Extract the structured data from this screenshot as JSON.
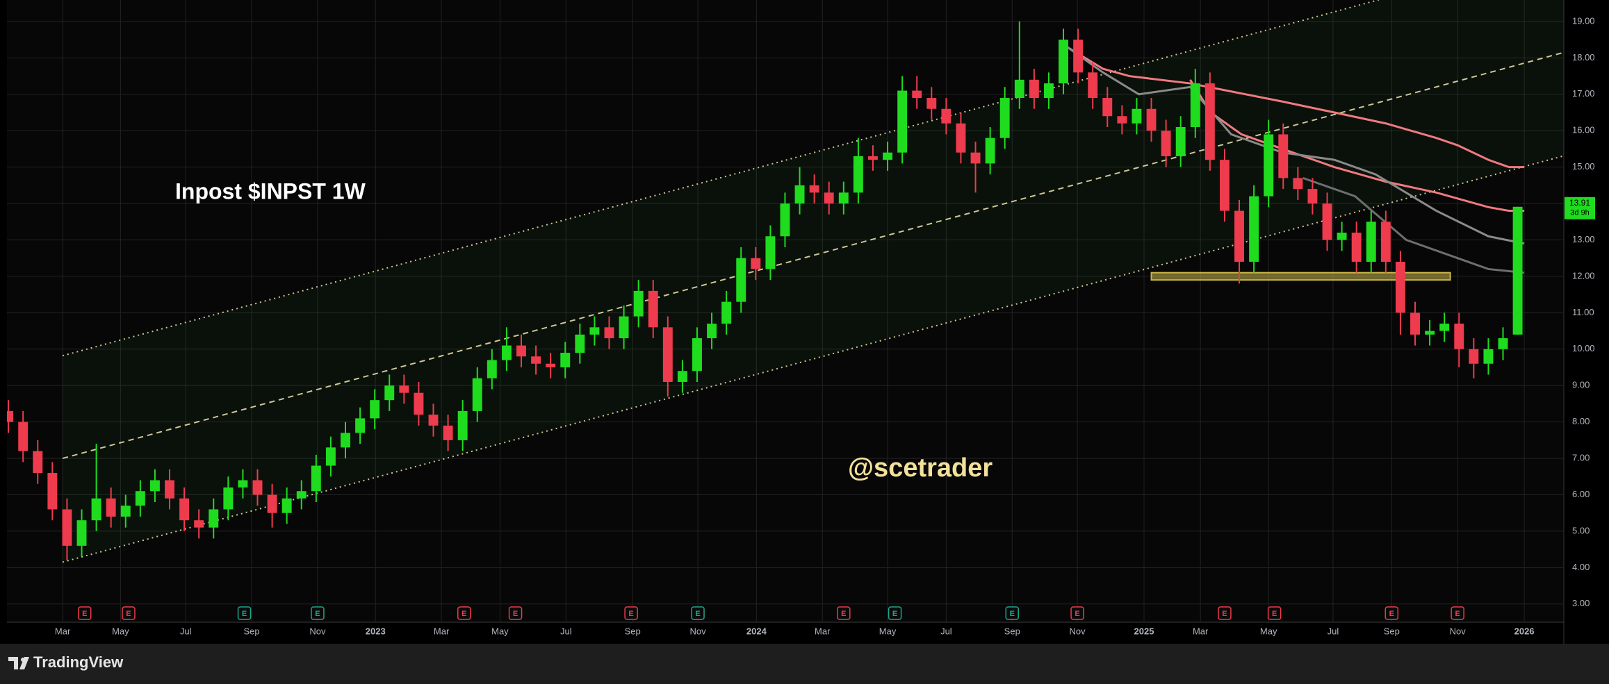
{
  "chart_data": {
    "type": "candlestick",
    "title": "Inpost $INPST 1W",
    "annotation": "@scetrader",
    "up_color": "#1fdc1f",
    "down_color": "#ee3b4d",
    "grid": true,
    "x": [
      2,
      4,
      6,
      8,
      10,
      12,
      14,
      16,
      18,
      20,
      22,
      24,
      26,
      28,
      30,
      32,
      34,
      36,
      38,
      40,
      42,
      44,
      46,
      48,
      50,
      52,
      54,
      56,
      58,
      60,
      62,
      64,
      66,
      68,
      70,
      72,
      74,
      76,
      78,
      80,
      82,
      84,
      86,
      88,
      90,
      92,
      94,
      96,
      98,
      100,
      102,
      104,
      106,
      108,
      110,
      112,
      114,
      116,
      118,
      120,
      122,
      124,
      126,
      128,
      130,
      132,
      134,
      136,
      138,
      140,
      142,
      144,
      146,
      148,
      150,
      152,
      154,
      156,
      158,
      160,
      162,
      164,
      166,
      168,
      170,
      172,
      174,
      176,
      178,
      180,
      182,
      184,
      186,
      188,
      190,
      192,
      194,
      196,
      198,
      200,
      202,
      204,
      206,
      208
    ],
    "open": [
      8.3,
      8.0,
      7.2,
      6.6,
      5.6,
      4.6,
      5.3,
      5.9,
      5.4,
      5.7,
      6.1,
      6.4,
      5.9,
      5.3,
      5.1,
      5.6,
      6.2,
      6.4,
      6.0,
      5.5,
      5.9,
      6.1,
      6.8,
      7.3,
      7.7,
      8.1,
      8.6,
      9.0,
      8.8,
      8.2,
      7.9,
      7.5,
      8.3,
      9.2,
      9.7,
      10.1,
      9.8,
      9.6,
      9.5,
      9.9,
      10.4,
      10.6,
      10.3,
      10.9,
      11.6,
      10.6,
      9.1,
      9.4,
      10.3,
      10.7,
      11.3,
      12.5,
      12.2,
      13.1,
      14.0,
      14.5,
      14.3,
      14.0,
      14.3,
      15.3,
      15.2,
      15.4,
      17.1,
      16.9,
      16.6,
      16.2,
      15.4,
      15.1,
      15.8,
      16.9,
      17.4,
      16.9,
      17.3,
      18.5,
      17.6,
      16.9,
      16.4,
      16.2,
      16.6,
      16.0,
      15.3,
      16.1,
      17.3,
      15.2,
      13.8,
      12.4,
      14.2,
      15.9,
      14.7,
      14.4,
      14.0,
      13.0,
      13.2,
      12.4,
      13.5,
      12.4,
      11.0,
      10.4,
      10.5,
      10.7,
      10.0,
      9.6,
      10.0,
      10.4
    ],
    "high": [
      8.6,
      8.3,
      7.5,
      6.9,
      5.9,
      5.6,
      7.4,
      6.2,
      6.0,
      6.4,
      6.7,
      6.7,
      6.2,
      5.6,
      5.9,
      6.5,
      6.7,
      6.7,
      6.3,
      6.2,
      6.4,
      7.1,
      7.6,
      8.0,
      8.4,
      8.9,
      9.3,
      9.3,
      9.1,
      8.5,
      8.2,
      8.6,
      9.5,
      10.0,
      10.6,
      10.4,
      10.1,
      9.9,
      10.2,
      10.7,
      10.9,
      10.9,
      11.2,
      11.9,
      11.9,
      10.9,
      9.7,
      10.6,
      11.0,
      11.6,
      12.8,
      12.8,
      13.4,
      14.3,
      15.0,
      14.8,
      14.6,
      14.6,
      15.8,
      15.6,
      15.7,
      17.5,
      17.5,
      17.2,
      16.9,
      16.5,
      15.7,
      16.1,
      17.2,
      19.0,
      17.7,
      17.6,
      18.8,
      18.8,
      17.9,
      17.2,
      16.7,
      16.9,
      16.9,
      16.3,
      16.4,
      17.7,
      17.6,
      15.5,
      14.1,
      14.5,
      16.3,
      16.2,
      15.0,
      14.7,
      14.3,
      13.5,
      13.5,
      13.8,
      13.8,
      12.7,
      11.3,
      10.8,
      11.0,
      11.0,
      10.3,
      10.3,
      10.6,
      13.91
    ],
    "low": [
      7.7,
      6.9,
      6.3,
      5.3,
      4.2,
      4.3,
      5.0,
      5.1,
      5.1,
      5.4,
      5.8,
      5.6,
      5.0,
      4.8,
      4.8,
      5.3,
      5.9,
      5.7,
      5.1,
      5.2,
      5.6,
      5.8,
      6.5,
      7.0,
      7.4,
      7.8,
      8.3,
      8.5,
      7.9,
      7.6,
      7.2,
      7.2,
      8.0,
      8.9,
      9.4,
      9.5,
      9.3,
      9.2,
      9.2,
      9.6,
      10.1,
      10.0,
      10.0,
      10.6,
      10.3,
      8.7,
      8.8,
      9.1,
      10.0,
      10.4,
      11.0,
      11.9,
      11.9,
      12.8,
      13.7,
      14.0,
      13.7,
      13.7,
      14.0,
      14.9,
      14.9,
      15.1,
      16.6,
      16.3,
      15.9,
      15.1,
      14.3,
      14.8,
      15.5,
      16.6,
      16.6,
      16.6,
      17.0,
      17.3,
      16.6,
      16.1,
      15.9,
      15.9,
      15.7,
      15.0,
      15.0,
      15.8,
      14.9,
      13.5,
      11.8,
      12.1,
      13.9,
      14.4,
      14.1,
      13.7,
      12.7,
      12.7,
      12.1,
      12.1,
      12.1,
      10.4,
      10.1,
      10.1,
      10.2,
      9.5,
      9.2,
      9.3,
      9.7,
      10.4
    ],
    "close": [
      8.0,
      7.2,
      6.6,
      5.6,
      4.6,
      5.3,
      5.9,
      5.4,
      5.7,
      6.1,
      6.4,
      5.9,
      5.3,
      5.1,
      5.6,
      6.2,
      6.4,
      6.0,
      5.5,
      5.9,
      6.1,
      6.8,
      7.3,
      7.7,
      8.1,
      8.6,
      9.0,
      8.8,
      8.2,
      7.9,
      7.5,
      8.3,
      9.2,
      9.7,
      10.1,
      9.8,
      9.6,
      9.5,
      9.9,
      10.4,
      10.6,
      10.3,
      10.9,
      11.6,
      10.6,
      9.1,
      9.4,
      10.3,
      10.7,
      11.3,
      12.5,
      12.2,
      13.1,
      14.0,
      14.5,
      14.3,
      14.0,
      14.3,
      15.3,
      15.2,
      15.4,
      17.1,
      16.9,
      16.6,
      16.2,
      15.4,
      15.1,
      15.8,
      16.9,
      17.4,
      16.9,
      17.3,
      18.5,
      17.6,
      16.9,
      16.4,
      16.2,
      16.6,
      16.0,
      15.3,
      16.1,
      17.3,
      15.2,
      13.8,
      12.4,
      14.2,
      15.9,
      14.7,
      14.4,
      14.0,
      13.0,
      13.2,
      12.4,
      13.5,
      12.4,
      11.0,
      10.4,
      10.5,
      10.7,
      10.0,
      9.6,
      10.0,
      10.3,
      13.91
    ],
    "countdown": "3d 9h",
    "ylim": [
      2.5,
      19.59
    ],
    "yticks": [
      {
        "value": 3,
        "label": "3.00"
      },
      {
        "value": 4,
        "label": "4.00"
      },
      {
        "value": 5,
        "label": "5.00"
      },
      {
        "value": 6,
        "label": "6.00"
      },
      {
        "value": 7,
        "label": "7.00"
      },
      {
        "value": 8,
        "label": "8.00"
      },
      {
        "value": 9,
        "label": "9.00"
      },
      {
        "value": 10,
        "label": "10.00"
      },
      {
        "value": 11,
        "label": "11.00"
      },
      {
        "value": 12,
        "label": "12.00"
      },
      {
        "value": 13,
        "label": "13.00"
      },
      {
        "value": 14,
        "label": "14.00"
      },
      {
        "value": 15,
        "label": "15.00"
      },
      {
        "value": 16,
        "label": "16.00"
      },
      {
        "value": 17,
        "label": "17.00"
      },
      {
        "value": 18,
        "label": "18.00"
      },
      {
        "value": 19,
        "label": "19.00"
      }
    ],
    "xlim": [
      1.8,
      214.3
    ],
    "xticks": [
      {
        "value": 9.4,
        "label": "Mar"
      },
      {
        "value": 17.3,
        "label": "May"
      },
      {
        "value": 26.2,
        "label": "Jul"
      },
      {
        "value": 35.2,
        "label": "Sep"
      },
      {
        "value": 44.2,
        "label": "Nov"
      },
      {
        "value": 52.1,
        "label": "2023"
      },
      {
        "value": 61.1,
        "label": "Mar"
      },
      {
        "value": 69.1,
        "label": "May"
      },
      {
        "value": 78.1,
        "label": "Jul"
      },
      {
        "value": 87.2,
        "label": "Sep"
      },
      {
        "value": 96.1,
        "label": "Nov"
      },
      {
        "value": 104.1,
        "label": "2024"
      },
      {
        "value": 113.1,
        "label": "Mar"
      },
      {
        "value": 122.0,
        "label": "May"
      },
      {
        "value": 130.0,
        "label": "Jul"
      },
      {
        "value": 139.0,
        "label": "Sep"
      },
      {
        "value": 147.9,
        "label": "Nov"
      },
      {
        "value": 157.0,
        "label": "2025"
      },
      {
        "value": 164.7,
        "label": "Mar"
      },
      {
        "value": 174.0,
        "label": "May"
      },
      {
        "value": 182.8,
        "label": "Jul"
      },
      {
        "value": 190.8,
        "label": "Sep"
      },
      {
        "value": 199.8,
        "label": "Nov"
      },
      {
        "value": 208.9,
        "label": "2026"
      }
    ],
    "moving_averages": [
      {
        "color": "#f07a80",
        "x": [
          146.5,
          151.4,
          155.0,
          163.3,
          175.9,
          183.0,
          190.0,
          196.9,
          199.8,
          204.0,
          206.8,
          208.9
        ],
        "values": [
          18.3,
          17.7,
          17.5,
          17.3,
          16.8,
          16.5,
          16.2,
          15.8,
          15.6,
          15.2,
          15.0,
          15.0
        ]
      },
      {
        "color": "#f07a80",
        "x": [
          163.3,
          166.1,
          170.3,
          175.9,
          183.0,
          190.0,
          196.9,
          204.0,
          206.8,
          208.9
        ],
        "values": [
          17.4,
          16.5,
          15.9,
          15.5,
          15.0,
          14.6,
          14.3,
          13.9,
          13.8,
          13.8
        ]
      },
      {
        "color": "#8a8a8a",
        "x": [
          146.5,
          151.4,
          156.3,
          163.3,
          168.9,
          175.9,
          183.0,
          188.6,
          196.9,
          204.0,
          208.9
        ],
        "values": [
          18.3,
          17.6,
          17.0,
          17.2,
          15.9,
          15.4,
          15.2,
          14.8,
          13.8,
          13.1,
          12.9
        ]
      },
      {
        "color": "#6e6e6e",
        "x": [
          178.7,
          185.8,
          192.8,
          199.8,
          204.0,
          208.9
        ],
        "values": [
          14.7,
          14.2,
          13.0,
          12.5,
          12.2,
          12.1
        ]
      }
    ],
    "channel": {
      "color": "#f3e6b0",
      "fill": "rgba(60,160,60,0.07)",
      "lines": [
        {
          "style": "dotted",
          "x": [
            9.4,
            214.3
          ],
          "values": [
            9.82,
            20.97
          ]
        },
        {
          "style": "dashed",
          "x": [
            9.4,
            214.3
          ],
          "values": [
            7.0,
            18.15
          ]
        },
        {
          "style": "dotted",
          "x": [
            9.4,
            214.3
          ],
          "values": [
            4.15,
            15.31
          ]
        }
      ]
    },
    "zone": {
      "color": "#c9b64a",
      "x": [
        158.0,
        198.8
      ],
      "values": [
        11.9,
        12.1
      ]
    },
    "events": [
      {
        "label": "E",
        "x": 12.4,
        "color": "#ee3b4d"
      },
      {
        "label": "E",
        "x": 18.4,
        "color": "#ee3b4d"
      },
      {
        "label": "E",
        "x": 34.2,
        "color": "#1fa58c"
      },
      {
        "label": "E",
        "x": 44.2,
        "color": "#1fa58c"
      },
      {
        "label": "E",
        "x": 64.2,
        "color": "#ee3b4d"
      },
      {
        "label": "E",
        "x": 71.2,
        "color": "#ee3b4d"
      },
      {
        "label": "E",
        "x": 87.0,
        "color": "#ee3b4d"
      },
      {
        "label": "E",
        "x": 96.1,
        "color": "#1fa58c"
      },
      {
        "label": "E",
        "x": 116.0,
        "color": "#ee3b4d"
      },
      {
        "label": "E",
        "x": 123.0,
        "color": "#1fa58c"
      },
      {
        "label": "E",
        "x": 139.0,
        "color": "#1fa58c"
      },
      {
        "label": "E",
        "x": 147.9,
        "color": "#ee3b4d"
      },
      {
        "label": "E",
        "x": 168.0,
        "color": "#ee3b4d"
      },
      {
        "label": "E",
        "x": 174.8,
        "color": "#ee3b4d"
      },
      {
        "label": "E",
        "x": 190.8,
        "color": "#ee3b4d"
      },
      {
        "label": "E",
        "x": 199.8,
        "color": "#ee3b4d"
      }
    ]
  },
  "branding": "TradingView"
}
